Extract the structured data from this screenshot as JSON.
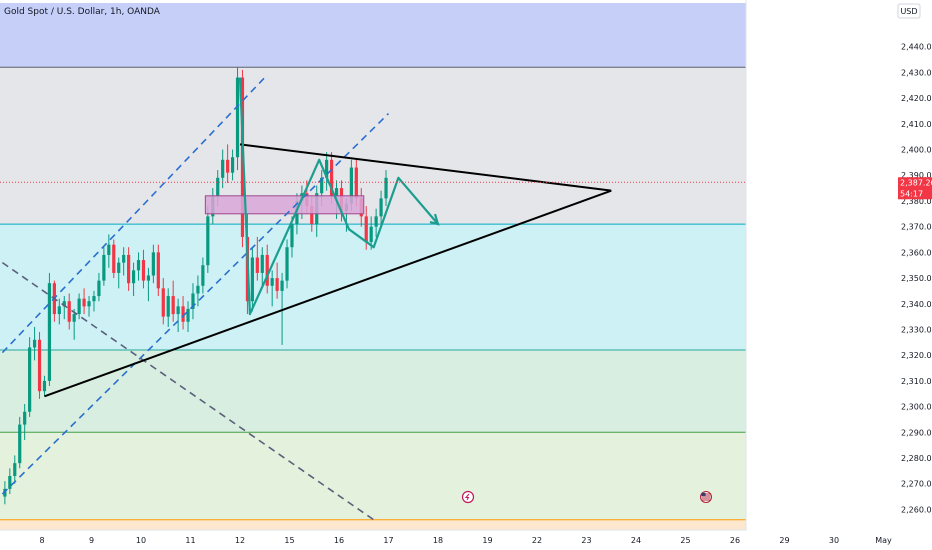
{
  "header": {
    "symbol_title": "Gold Spot / U.S. Dollar, 1h, OANDA",
    "currency_button": "USD"
  },
  "price_marker": {
    "price_label": "2,387.260",
    "countdown_label": "54:17",
    "color": "#f23645"
  },
  "event_icons": [
    "earnings-icon",
    "us-flag-icon",
    "us-flag-icon"
  ],
  "chart_data": {
    "type": "candlestick",
    "title": "Gold Spot / U.S. Dollar, 1h, OANDA",
    "ylim": [
      2252,
      2457
    ],
    "xlim": [
      0,
      33
    ],
    "y_ticks": [
      2260,
      2270,
      2280,
      2290,
      2300,
      2310,
      2320,
      2330,
      2340,
      2350,
      2360,
      2370,
      2380,
      2390,
      2400,
      2410,
      2420,
      2430,
      2440
    ],
    "y_tick_labels": [
      "2,260.000",
      "2,270.000",
      "2,280.000",
      "2,290.000",
      "2,300.000",
      "2,310.000",
      "2,320.000",
      "2,330.000",
      "2,340.000",
      "2,350.000",
      "2,360.000",
      "2,370.000",
      "2,380.000",
      "2,390.000",
      "2,400.000",
      "2,410.000",
      "2,420.000",
      "2,430.000",
      "2,440.000"
    ],
    "x_ticks": [
      {
        "x": 0,
        "label": "8"
      },
      {
        "x": 1,
        "label": "9"
      },
      {
        "x": 2,
        "label": "10"
      },
      {
        "x": 3,
        "label": "11"
      },
      {
        "x": 4,
        "label": "12"
      },
      {
        "x": 5,
        "label": "15"
      },
      {
        "x": 6,
        "label": "16"
      },
      {
        "x": 7,
        "label": "17"
      },
      {
        "x": 8,
        "label": "18"
      },
      {
        "x": 9,
        "label": "19"
      },
      {
        "x": 10,
        "label": "22"
      },
      {
        "x": 11,
        "label": "23"
      },
      {
        "x": 12,
        "label": "24"
      },
      {
        "x": 13,
        "label": "25"
      },
      {
        "x": 14,
        "label": "26"
      },
      {
        "x": 15,
        "label": "29"
      },
      {
        "x": 16,
        "label": "30"
      },
      {
        "x": 17,
        "label": "May"
      }
    ],
    "last_price": 2387.26,
    "colors": {
      "up": "#089981",
      "down": "#f23645"
    },
    "zones": [
      {
        "from": 2432,
        "to": 2457,
        "color": "#c5cff8"
      },
      {
        "from": 2371,
        "to": 2432,
        "color": "#e5e6ea"
      },
      {
        "from": 2322,
        "to": 2371,
        "color": "#cdf1f4"
      },
      {
        "from": 2290,
        "to": 2322,
        "color": "#d7eee1"
      },
      {
        "from": 2256,
        "to": 2290,
        "color": "#e4f1dd"
      },
      {
        "from": 2252,
        "to": 2256,
        "color": "#fde8cf"
      }
    ],
    "levels": [
      {
        "price": 2432,
        "color": "#5d606b"
      },
      {
        "price": 2371,
        "color": "#00acc1"
      },
      {
        "price": 2322,
        "color": "#26a69a"
      },
      {
        "price": 2290,
        "color": "#43a047"
      },
      {
        "price": 2256,
        "color": "#ff9800"
      }
    ],
    "candles": [
      [
        -0.75,
        2265,
        2271,
        2262,
        2268
      ],
      [
        -0.65,
        2268,
        2276,
        2266,
        2273
      ],
      [
        -0.55,
        2273,
        2281,
        2270,
        2278
      ],
      [
        -0.45,
        2278,
        2296,
        2276,
        2293
      ],
      [
        -0.35,
        2293,
        2301,
        2287,
        2298
      ],
      [
        -0.25,
        2298,
        2327,
        2296,
        2323
      ],
      [
        -0.15,
        2323,
        2331,
        2318,
        2326
      ],
      [
        -0.05,
        2326,
        2329,
        2303,
        2306
      ],
      [
        0.05,
        2306,
        2312,
        2304,
        2310
      ],
      [
        0.15,
        2310,
        2352,
        2308,
        2348
      ],
      [
        0.25,
        2348,
        2349,
        2333,
        2336
      ],
      [
        0.35,
        2336,
        2342,
        2332,
        2339
      ],
      [
        0.45,
        2339,
        2343,
        2334,
        2341
      ],
      [
        0.55,
        2341,
        2344,
        2330,
        2333
      ],
      [
        0.65,
        2333,
        2338,
        2326,
        2336
      ],
      [
        0.75,
        2336,
        2344,
        2334,
        2342
      ],
      [
        0.85,
        2342,
        2346,
        2336,
        2339
      ],
      [
        0.95,
        2339,
        2343,
        2335,
        2341
      ],
      [
        1.05,
        2341,
        2345,
        2337,
        2343
      ],
      [
        1.15,
        2343,
        2352,
        2341,
        2349
      ],
      [
        1.25,
        2349,
        2362,
        2347,
        2359
      ],
      [
        1.35,
        2359,
        2367,
        2354,
        2363
      ],
      [
        1.45,
        2363,
        2365,
        2350,
        2352
      ],
      [
        1.55,
        2352,
        2358,
        2346,
        2356
      ],
      [
        1.65,
        2356,
        2362,
        2351,
        2359
      ],
      [
        1.75,
        2359,
        2362,
        2345,
        2348
      ],
      [
        1.85,
        2348,
        2356,
        2343,
        2353
      ],
      [
        1.95,
        2353,
        2360,
        2349,
        2357
      ],
      [
        2.05,
        2357,
        2361,
        2346,
        2349
      ],
      [
        2.15,
        2349,
        2354,
        2341,
        2351
      ],
      [
        2.25,
        2351,
        2363,
        2348,
        2360
      ],
      [
        2.35,
        2360,
        2363,
        2343,
        2346
      ],
      [
        2.45,
        2346,
        2350,
        2332,
        2335
      ],
      [
        2.55,
        2335,
        2346,
        2331,
        2343
      ],
      [
        2.65,
        2343,
        2349,
        2333,
        2336
      ],
      [
        2.75,
        2336,
        2342,
        2329,
        2339
      ],
      [
        2.85,
        2339,
        2343,
        2330,
        2333
      ],
      [
        2.95,
        2333,
        2341,
        2329,
        2338
      ],
      [
        3.05,
        2338,
        2348,
        2334,
        2344
      ],
      [
        3.15,
        2344,
        2351,
        2339,
        2347
      ],
      [
        3.25,
        2347,
        2358,
        2344,
        2355
      ],
      [
        3.35,
        2355,
        2378,
        2352,
        2374
      ],
      [
        3.45,
        2374,
        2385,
        2371,
        2382
      ],
      [
        3.55,
        2382,
        2392,
        2378,
        2389
      ],
      [
        3.65,
        2389,
        2400,
        2385,
        2396
      ],
      [
        3.75,
        2396,
        2402,
        2387,
        2391
      ],
      [
        3.85,
        2391,
        2400,
        2388,
        2397
      ],
      [
        3.95,
        2397,
        2432,
        2392,
        2428
      ],
      [
        4.05,
        2428,
        2431,
        2362,
        2366
      ],
      [
        4.15,
        2366,
        2375,
        2336,
        2341
      ],
      [
        4.25,
        2341,
        2362,
        2337,
        2358
      ],
      [
        4.35,
        2358,
        2366,
        2349,
        2352
      ],
      [
        4.45,
        2352,
        2362,
        2347,
        2359
      ],
      [
        4.55,
        2359,
        2363,
        2344,
        2347
      ],
      [
        4.65,
        2347,
        2353,
        2339,
        2350
      ],
      [
        4.75,
        2350,
        2356,
        2342,
        2345
      ],
      [
        4.85,
        2345,
        2352,
        2324,
        2349
      ],
      [
        4.95,
        2349,
        2365,
        2346,
        2362
      ],
      [
        5.05,
        2362,
        2374,
        2358,
        2371
      ],
      [
        5.15,
        2371,
        2383,
        2367,
        2380
      ],
      [
        5.25,
        2380,
        2386,
        2373,
        2383
      ],
      [
        5.35,
        2383,
        2388,
        2375,
        2378
      ],
      [
        5.45,
        2378,
        2382,
        2368,
        2371
      ],
      [
        5.55,
        2371,
        2386,
        2366,
        2383
      ],
      [
        5.65,
        2383,
        2392,
        2378,
        2389
      ],
      [
        5.75,
        2389,
        2399,
        2384,
        2396
      ],
      [
        5.85,
        2396,
        2399,
        2379,
        2382
      ],
      [
        5.95,
        2382,
        2388,
        2373,
        2385
      ],
      [
        6.05,
        2385,
        2388,
        2372,
        2376
      ],
      [
        6.15,
        2376,
        2381,
        2368,
        2379
      ],
      [
        6.25,
        2379,
        2396,
        2376,
        2393
      ],
      [
        6.35,
        2393,
        2396,
        2378,
        2381
      ],
      [
        6.45,
        2381,
        2385,
        2370,
        2374
      ],
      [
        6.55,
        2374,
        2378,
        2361,
        2364
      ],
      [
        6.65,
        2364,
        2374,
        2361,
        2370
      ],
      [
        6.75,
        2370,
        2377,
        2366,
        2374
      ],
      [
        6.85,
        2374,
        2384,
        2371,
        2381
      ],
      [
        6.95,
        2381,
        2392,
        2378,
        2389
      ]
    ],
    "annotations": {
      "channel_lines": [
        {
          "from": [
            -0.8,
            2266
          ],
          "to": [
            7.0,
            2414
          ],
          "color": "#2a6fcf",
          "dash": true
        },
        {
          "from": [
            -0.8,
            2321
          ],
          "to": [
            4.5,
            2428
          ],
          "color": "#2a6fcf",
          "dash": true
        },
        {
          "from": [
            -0.8,
            2356
          ],
          "to": [
            6.7,
            2256
          ],
          "color": "#5a607a",
          "dash": true
        }
      ],
      "triangle_lines": [
        {
          "from": [
            0.05,
            2304
          ],
          "to": [
            11.5,
            2384
          ],
          "color": "#000000"
        },
        {
          "from": [
            4.0,
            2402
          ],
          "to": [
            11.5,
            2384
          ],
          "color": "#000000"
        }
      ],
      "pattern_path": {
        "points": [
          [
            4.0,
            2428
          ],
          [
            4.2,
            2336
          ],
          [
            5.0,
            2370
          ],
          [
            5.6,
            2396
          ],
          [
            6.2,
            2369
          ],
          [
            6.7,
            2362
          ],
          [
            7.2,
            2389
          ],
          [
            8.0,
            2371
          ]
        ],
        "color": "#1a9e8f"
      },
      "rectangle": {
        "x1": 3.3,
        "x2": 6.5,
        "y1": 2375,
        "y2": 2382,
        "fill": "#d9a6d8",
        "stroke": "#a0478e"
      }
    }
  }
}
